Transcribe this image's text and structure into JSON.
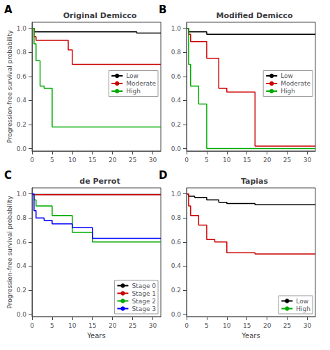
{
  "chart_data": [
    {
      "type": "step",
      "title": "Original Demicco",
      "annotations": [
        "A"
      ],
      "ylabel": "Progression-free survival probability",
      "series": [
        {
          "name": "Low",
          "color": "black",
          "x": [
            0,
            0.5,
            10,
            26,
            32
          ],
          "values": [
            1.0,
            0.97,
            0.97,
            0.96,
            0.96
          ]
        },
        {
          "name": "Moderate",
          "color": "#cc0000",
          "x": [
            0,
            0.5,
            1,
            9,
            10,
            17,
            26,
            32
          ],
          "values": [
            1.0,
            0.93,
            0.9,
            0.82,
            0.7,
            0.7,
            0.7,
            0.7
          ]
        },
        {
          "name": "High",
          "color": "#00aa00",
          "x": [
            0,
            0.5,
            1,
            2,
            3,
            5,
            9,
            32
          ],
          "values": [
            1.0,
            0.87,
            0.73,
            0.52,
            0.5,
            0.18,
            0.18,
            0.18
          ]
        }
      ],
      "xlim": [
        0,
        32
      ],
      "ylim": [
        -0.02,
        1.05
      ],
      "xticks": [
        0,
        5,
        10,
        15,
        20,
        25,
        30
      ],
      "yticks": [
        {
          "value": 0.0,
          "label": "0.0"
        },
        0.2,
        0.4,
        0.6,
        0.8,
        {
          "value": 1.0,
          "label": "1.0"
        }
      ],
      "grid": false,
      "legend": "center right"
    },
    {
      "type": "step",
      "title": "Modified Demicco",
      "annotations": [
        "B"
      ],
      "series": [
        {
          "name": "Low",
          "color": "black",
          "x": [
            0,
            0.5,
            5,
            17,
            32
          ],
          "values": [
            1.0,
            0.97,
            0.95,
            0.95,
            0.95
          ]
        },
        {
          "name": "Moderate",
          "color": "#cc0000",
          "x": [
            0,
            0.5,
            1,
            5,
            8,
            10,
            17,
            32
          ],
          "values": [
            1.0,
            0.95,
            0.89,
            0.75,
            0.5,
            0.47,
            0.02,
            0.02
          ]
        },
        {
          "name": "High",
          "color": "#00aa00",
          "x": [
            0,
            0.5,
            1,
            3,
            5,
            32
          ],
          "values": [
            1.0,
            0.7,
            0.52,
            0.37,
            0.0,
            0.0
          ]
        }
      ],
      "xlim": [
        0,
        32
      ],
      "ylim": [
        -0.02,
        1.05
      ],
      "xticks": [
        0,
        5,
        10,
        15,
        20,
        25,
        30
      ],
      "yticks": [
        {
          "value": 0.0,
          "label": "0.0"
        },
        0.2,
        0.4,
        0.6,
        0.8,
        {
          "value": 1.0,
          "label": "1.0"
        }
      ],
      "grid": false,
      "legend": "center right"
    },
    {
      "type": "step",
      "title": "de Perrot",
      "annotations": [
        "C"
      ],
      "xlabel": "Years",
      "ylabel": "Progression-free survival probability",
      "series": [
        {
          "name": "Stage 0",
          "color": "black",
          "x": [
            0,
            0.3,
            25,
            32
          ],
          "values": [
            1.0,
            0.995,
            0.995,
            0.995
          ]
        },
        {
          "name": "Stage 1",
          "color": "#cc0000",
          "x": [
            0,
            0.15,
            25,
            32
          ],
          "values": [
            1.0,
            0.993,
            0.993,
            0.993
          ]
        },
        {
          "name": "Stage 2",
          "color": "#00aa00",
          "x": [
            0,
            0.5,
            1,
            5,
            10,
            15,
            16,
            25,
            32
          ],
          "values": [
            1.0,
            0.95,
            0.9,
            0.82,
            0.68,
            0.6,
            0.6,
            0.6,
            0.6
          ]
        },
        {
          "name": "Stage 3",
          "color": "blue",
          "x": [
            0,
            0.5,
            1,
            3,
            5,
            10,
            15,
            17,
            25,
            32
          ],
          "values": [
            1.0,
            0.86,
            0.8,
            0.78,
            0.75,
            0.72,
            0.63,
            0.63,
            0.63,
            0.63
          ]
        }
      ],
      "xlim": [
        0,
        32
      ],
      "ylim": [
        -0.02,
        1.05
      ],
      "xticks": [
        0,
        5,
        10,
        15,
        20,
        25,
        30
      ],
      "yticks": [
        {
          "value": 0.0,
          "label": "0.0"
        },
        0.2,
        0.4,
        0.6,
        0.8,
        {
          "value": 1.0,
          "label": "1.0"
        }
      ],
      "grid": false,
      "legend": "lower right"
    },
    {
      "type": "step",
      "title": "Tapias",
      "annotations": [
        "D"
      ],
      "xlabel": "Years",
      "series": [
        {
          "name": "Low",
          "color": "black",
          "x": [
            0,
            0.5,
            2,
            5,
            8,
            10,
            15,
            17,
            25,
            32
          ],
          "values": [
            1.0,
            0.98,
            0.97,
            0.95,
            0.93,
            0.92,
            0.92,
            0.91,
            0.91,
            0.91
          ]
        },
        {
          "name": "High",
          "color": "#cc0000",
          "x": [
            0,
            0.5,
            1,
            3,
            5,
            7,
            8,
            10,
            16,
            17,
            25,
            32
          ],
          "values": [
            1.0,
            0.9,
            0.82,
            0.74,
            0.62,
            0.6,
            0.6,
            0.51,
            0.51,
            0.5,
            0.5,
            0.5
          ]
        }
      ],
      "xlim": [
        0,
        32
      ],
      "ylim": [
        -0.02,
        1.05
      ],
      "xticks": [
        0,
        5,
        10,
        15,
        20,
        25,
        30
      ],
      "yticks": [
        {
          "value": 0.0,
          "label": "0.0"
        },
        0.2,
        0.4,
        0.6,
        0.8,
        {
          "value": 1.0,
          "label": "1.0"
        }
      ],
      "grid": false,
      "legend": "lower right"
    }
  ]
}
